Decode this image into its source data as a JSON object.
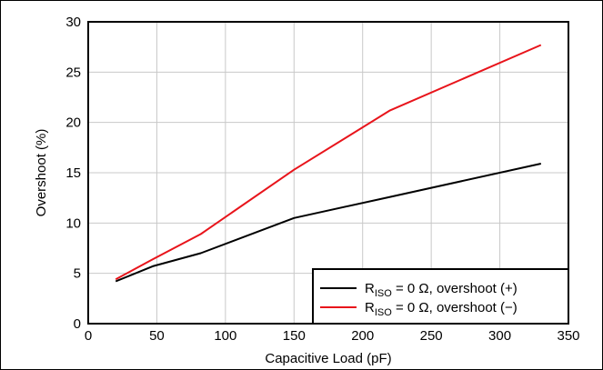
{
  "chart_data": {
    "type": "line",
    "xlabel": "Capacitive Load (pF)",
    "ylabel": "Overshoot (%)",
    "xlim": [
      0,
      350
    ],
    "ylim": [
      0,
      30
    ],
    "xticks": [
      "0",
      "50",
      "100",
      "150",
      "200",
      "250",
      "300",
      "350"
    ],
    "yticks": [
      "0",
      "5",
      "10",
      "15",
      "20",
      "25",
      "30"
    ],
    "grid": true,
    "legend_position": "bottom-right",
    "series": [
      {
        "name_main": "R",
        "name_sub": "ISO",
        "name_rest": " = 0 Ω, overshoot (+)",
        "color": "#000000",
        "x": [
          20,
          47,
          82,
          150,
          220,
          330
        ],
        "y": [
          4.2,
          5.7,
          7.0,
          10.5,
          12.6,
          15.9
        ]
      },
      {
        "name_main": "R",
        "name_sub": "ISO",
        "name_rest": " = 0 Ω, overshoot (−)",
        "color": "#e8141b",
        "x": [
          20,
          47,
          82,
          150,
          220,
          330
        ],
        "y": [
          4.4,
          6.4,
          8.9,
          15.3,
          21.2,
          27.7
        ]
      }
    ]
  }
}
